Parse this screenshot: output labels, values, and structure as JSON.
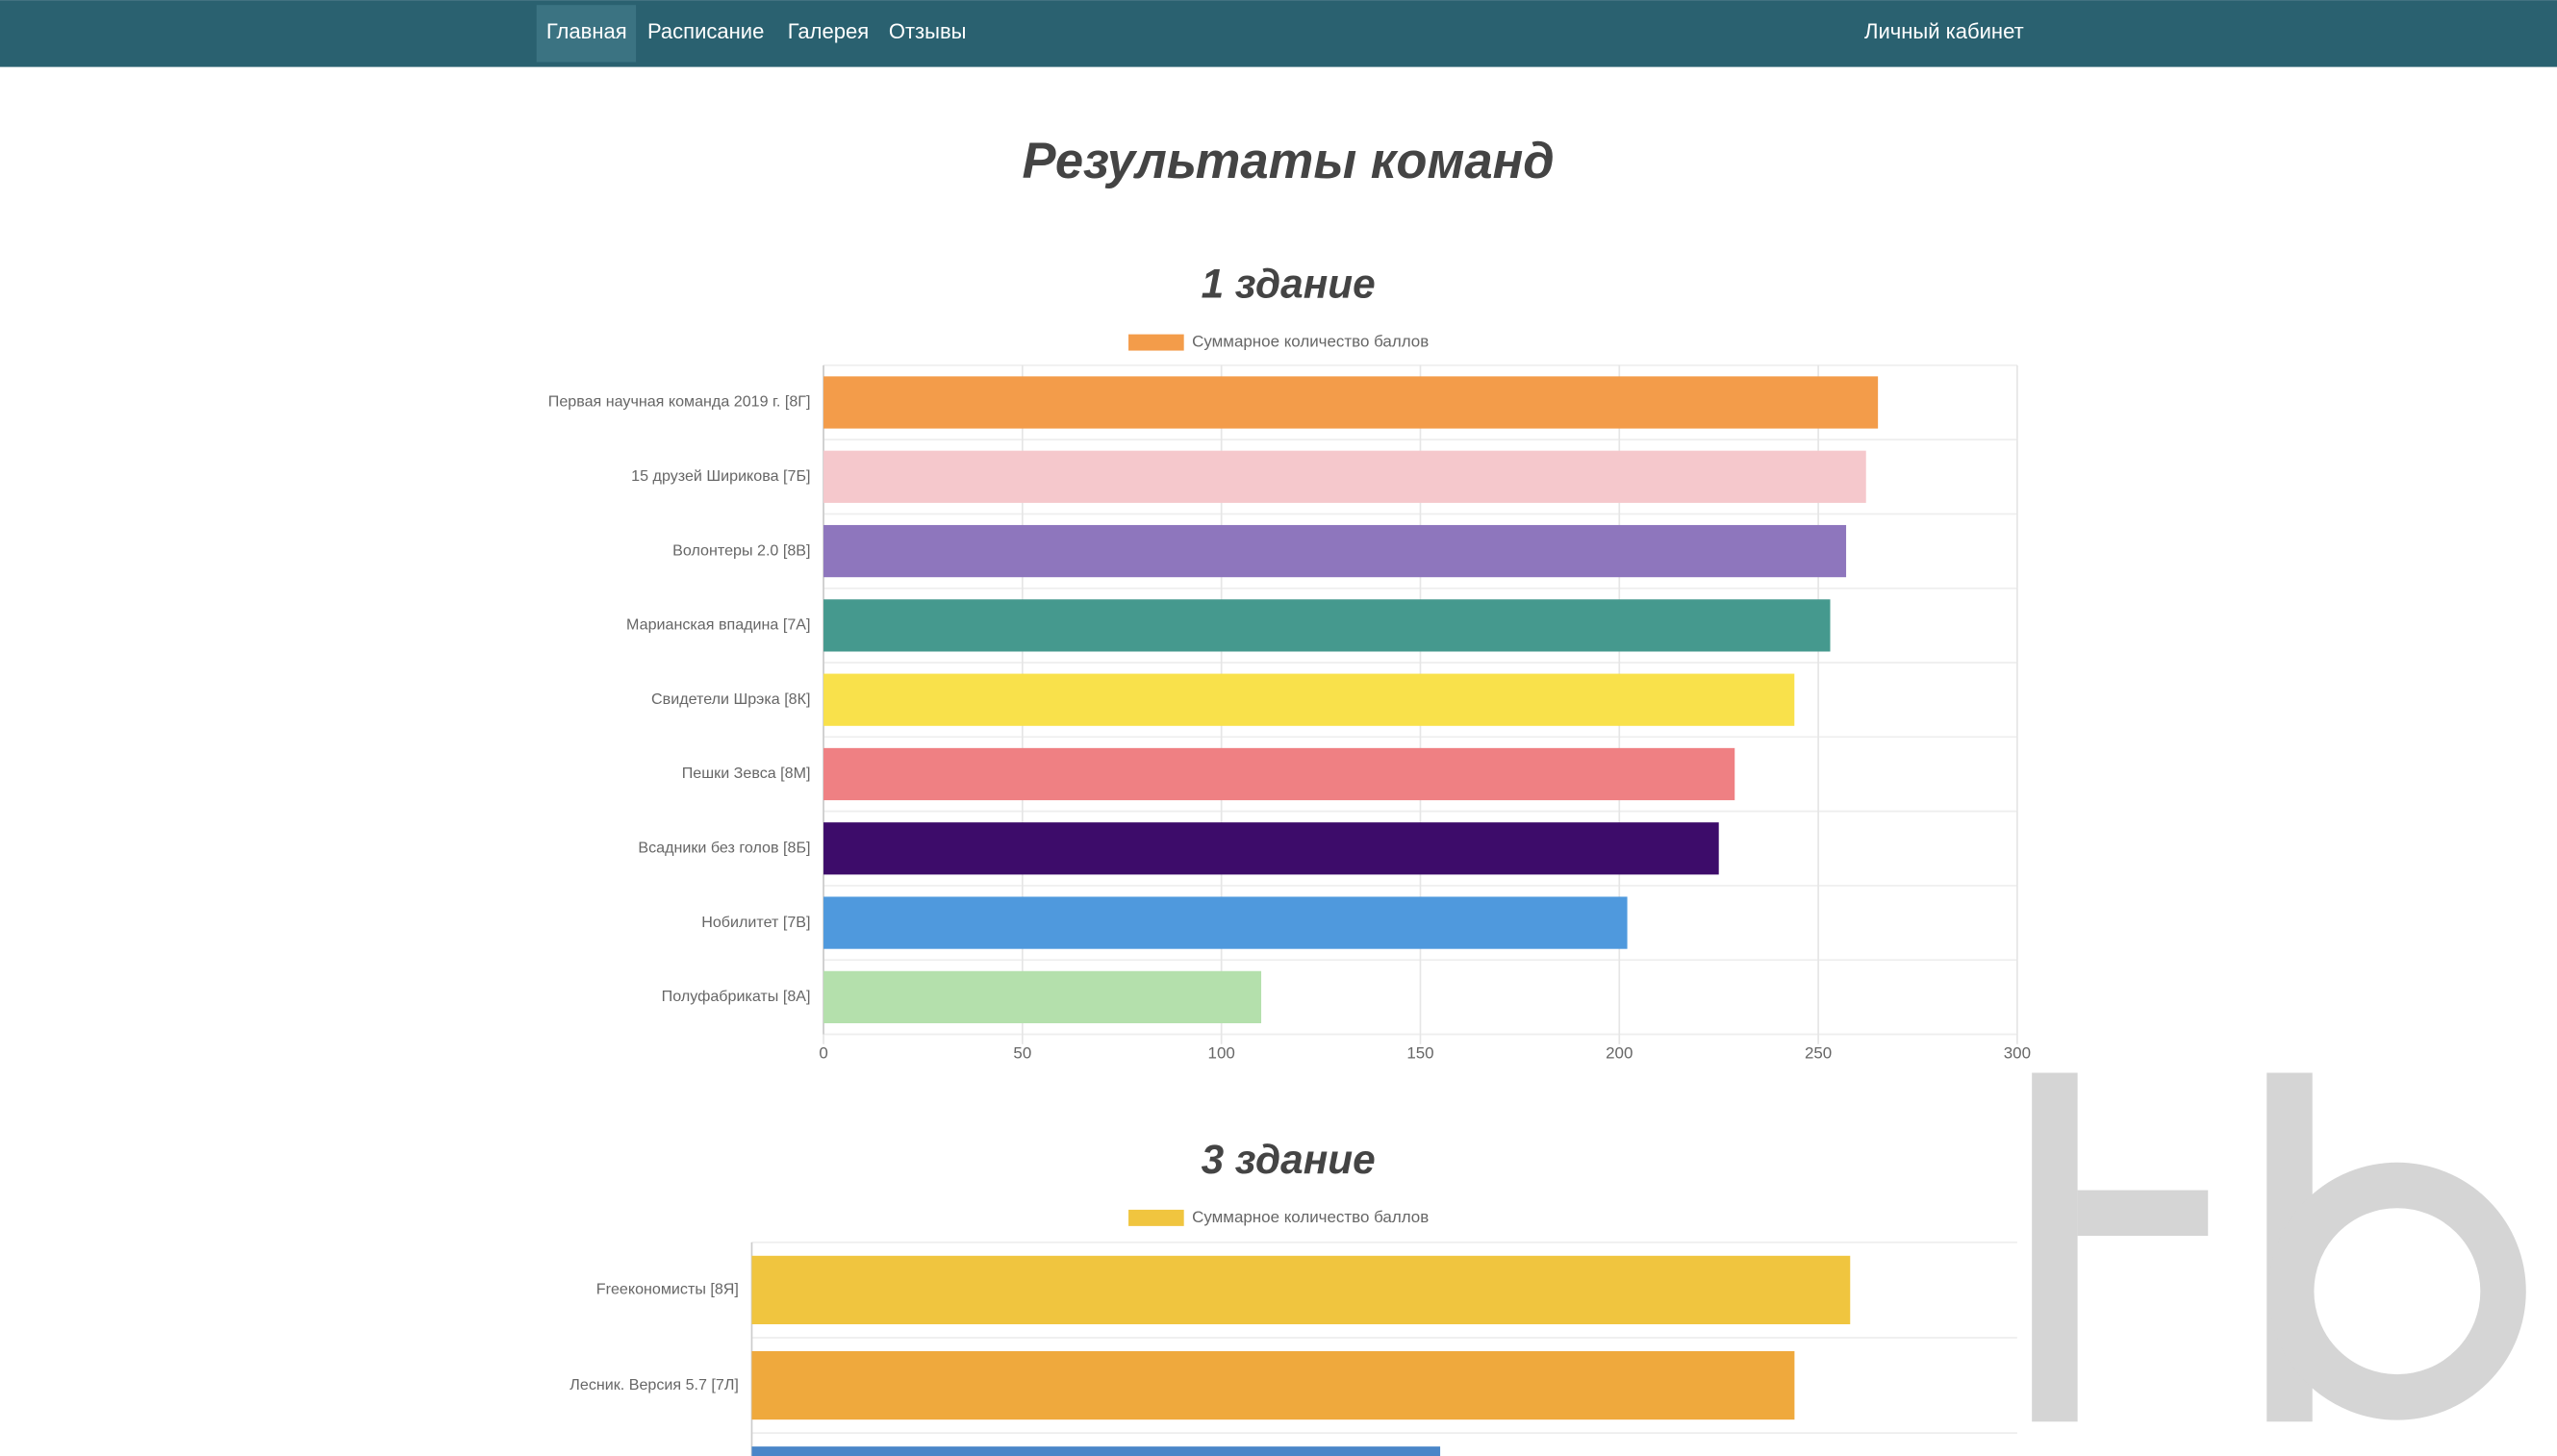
{
  "nav": {
    "items": [
      "Главная",
      "Расписание",
      "Галерея",
      "Отзывы"
    ],
    "account": "Личный кабинет"
  },
  "page_title": "Результаты команд",
  "chart_data": [
    {
      "type": "hbar",
      "title": "1 здание",
      "categories": [
        "Первая научная команда 2019 г. [8Г]",
        "15 друзей Ширикова [7Б]",
        "Волонтеры 2.0 [8В]",
        "Марианская впадина [7А]",
        "Свидетели Шрэка [8К]",
        "Пешки Зевса [8М]",
        "Всадники без голов [8Б]",
        "Нобилитет [7В]",
        "Полуфабрикаты [8А]"
      ],
      "series": [
        {
          "name": "Суммарное количество баллов",
          "colors": [
            "#f39c4a",
            "#f5c8cc",
            "#8e76bd",
            "#45998e",
            "#f9e14b",
            "#ef8083",
            "#3d0c6a",
            "#4f99dd",
            "#b4e0ac"
          ],
          "values": [
            265,
            262,
            257,
            253,
            244,
            229,
            225,
            202,
            110
          ]
        }
      ],
      "xlim": [
        0,
        300
      ],
      "xticks": [
        0,
        50,
        100,
        150,
        200,
        250,
        300
      ],
      "grid": true
    },
    {
      "type": "hbar",
      "title": "3 здание",
      "categories": [
        "Freeкономисты [8Я]",
        "Лесник. Версия 5.7 [7Л]",
        null
      ],
      "series": [
        {
          "name": "Суммарное количество баллов",
          "colors": [
            "#f0c53f",
            "#efa93d",
            "#4a86c8"
          ],
          "values": [
            217,
            206,
            136
          ]
        }
      ],
      "xlim": [
        0,
        250
      ],
      "grid": true
    }
  ]
}
